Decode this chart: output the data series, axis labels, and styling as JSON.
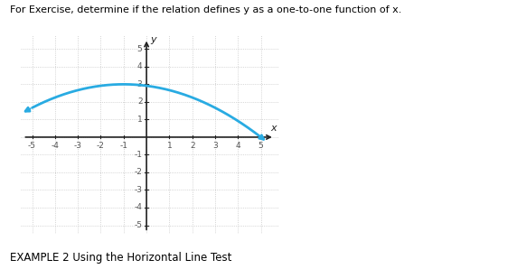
{
  "title_text": "For Exercise, determine if the relation defines y as a one-to-one function of x.",
  "caption": "EXAMPLE 2 Using the Horizontal Line Test",
  "xlim": [
    -5.5,
    5.8
  ],
  "ylim": [
    -5.5,
    5.8
  ],
  "xtick_vals": [
    -5,
    -4,
    -3,
    -2,
    -1,
    1,
    2,
    3,
    4,
    5
  ],
  "ytick_vals": [
    -5,
    -4,
    -3,
    -2,
    -1,
    1,
    2,
    3,
    4,
    5
  ],
  "curve_color": "#29ABE2",
  "curve_lw": 2.0,
  "background": "#ffffff",
  "grid_color": "#b0b0b0",
  "axis_color": "#222222",
  "text_color": "#555555"
}
